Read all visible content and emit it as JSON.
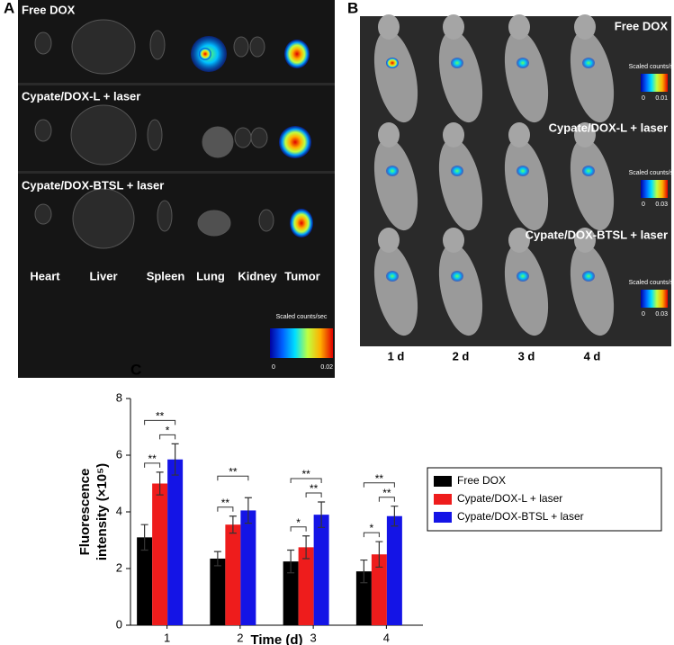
{
  "panel_a": {
    "label": "A",
    "rows": [
      "Free DOX",
      "Cypate/DOX-L + laser",
      "Cypate/DOX-BTSL + laser"
    ],
    "organs": [
      "Heart",
      "Liver",
      "Spleen",
      "Lung",
      "Kidney",
      "Tumor"
    ],
    "colorbar": {
      "title": "Scaled counts/sec",
      "min": "0",
      "max": "0.02"
    }
  },
  "panel_b": {
    "label": "B",
    "rows": [
      "Free DOX",
      "Cypate/DOX-L + laser",
      "Cypate/DOX-BTSL + laser"
    ],
    "colorbars": [
      {
        "title": "Scaled counts/sec",
        "min": "0",
        "max": "0.01"
      },
      {
        "title": "Scaled counts/sec",
        "min": "0",
        "max": "0.03"
      },
      {
        "title": "Scaled counts/sec",
        "min": "0",
        "max": "0.03"
      }
    ],
    "days": [
      "1 d",
      "2 d",
      "3 d",
      "4 d"
    ]
  },
  "chart_data": {
    "type": "bar",
    "panel_label": "C",
    "xlabel": "Time (d)",
    "ylabel": [
      "Fluorescence",
      "intensity (×10⁵)"
    ],
    "categories": [
      "1",
      "2",
      "3",
      "4"
    ],
    "series": [
      {
        "name": "Free DOX",
        "color": "#000000",
        "values": [
          3.1,
          2.35,
          2.25,
          1.9
        ],
        "errors": [
          0.45,
          0.25,
          0.4,
          0.4
        ]
      },
      {
        "name": "Cypate/DOX-L + laser",
        "color": "#ee1c1c",
        "values": [
          5.0,
          3.55,
          2.75,
          2.5
        ],
        "errors": [
          0.4,
          0.3,
          0.4,
          0.45
        ]
      },
      {
        "name": "Cypate/DOX-BTSL + laser",
        "color": "#1414e6",
        "values": [
          5.85,
          4.05,
          3.9,
          3.85
        ],
        "errors": [
          0.55,
          0.45,
          0.45,
          0.35
        ]
      }
    ],
    "significance": [
      [
        "**",
        "*",
        "**"
      ],
      [
        "**",
        null,
        "**"
      ],
      [
        "*",
        "**",
        "**"
      ],
      [
        "*",
        "**",
        "**"
      ]
    ],
    "ylim": [
      0,
      8
    ],
    "yticks": [
      0,
      2,
      4,
      6,
      8
    ]
  }
}
